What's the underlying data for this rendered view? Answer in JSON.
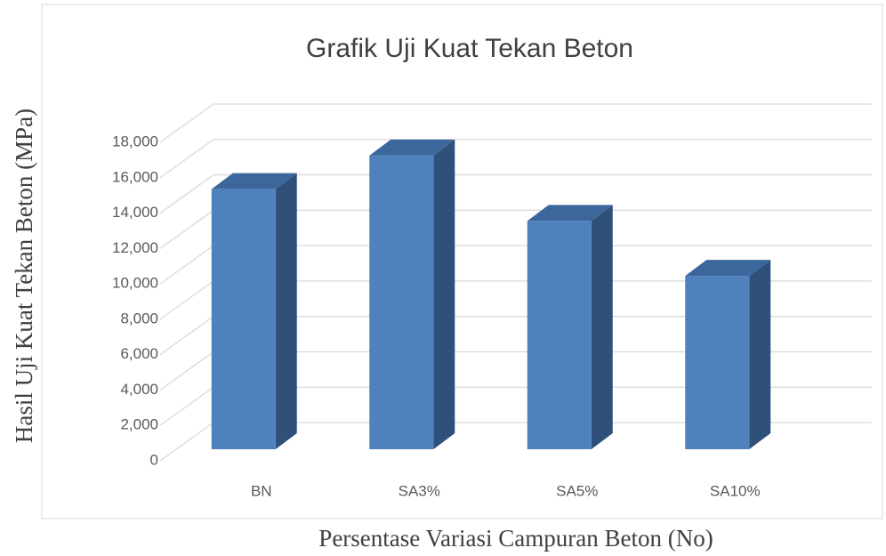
{
  "chart_data": {
    "type": "bar3d",
    "title": "Grafik Uji Kuat Tekan Beton",
    "y_label": "Hasil Uji Kuat Tekan Beton (MPa)",
    "x_label": "Persentase Variasi Campuran Beton (No)",
    "categories": [
      "BN",
      "SA3%",
      "SA5%",
      "SA10%"
    ],
    "values": [
      14700,
      16600,
      12900,
      9800
    ],
    "color": "#4f81bd",
    "ylim": [
      0,
      18000
    ],
    "yticks": [
      0,
      {
        "value": 2000,
        "label": "2,000"
      },
      {
        "value": 4000,
        "label": "4,000"
      },
      {
        "value": 6000,
        "label": "6,000"
      },
      {
        "value": 8000,
        "label": "8,000"
      },
      {
        "value": 10000,
        "label": "10,000"
      },
      {
        "value": 12000,
        "label": "12,000"
      },
      {
        "value": 14000,
        "label": "14,000"
      },
      {
        "value": 16000,
        "label": "16,000"
      },
      {
        "value": 18000,
        "label": "18,000"
      }
    ],
    "grid": true
  }
}
